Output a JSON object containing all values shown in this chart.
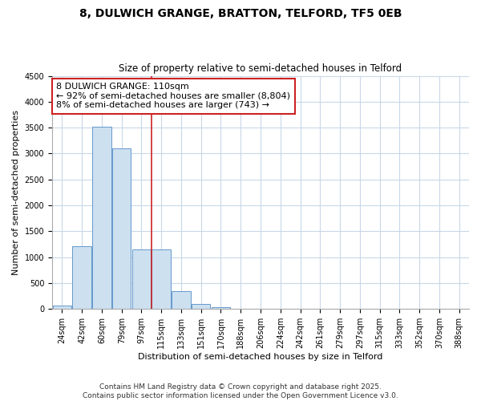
{
  "title": "8, DULWICH GRANGE, BRATTON, TELFORD, TF5 0EB",
  "subtitle": "Size of property relative to semi-detached houses in Telford",
  "xlabel": "Distribution of semi-detached houses by size in Telford",
  "ylabel": "Number of semi-detached properties",
  "categories": [
    "24sqm",
    "42sqm",
    "60sqm",
    "79sqm",
    "97sqm",
    "115sqm",
    "133sqm",
    "151sqm",
    "170sqm",
    "188sqm",
    "206sqm",
    "224sqm",
    "242sqm",
    "261sqm",
    "279sqm",
    "297sqm",
    "315sqm",
    "333sqm",
    "352sqm",
    "370sqm",
    "388sqm"
  ],
  "values": [
    75,
    1220,
    3520,
    3100,
    1150,
    1150,
    350,
    100,
    30,
    0,
    0,
    0,
    0,
    0,
    0,
    0,
    0,
    0,
    0,
    0,
    0
  ],
  "bar_color": "#cce0f0",
  "bar_edge_color": "#6699cc",
  "property_line_x": 4.5,
  "property_line_color": "#cc2222",
  "annotation_line1": "8 DULWICH GRANGE: 110sqm",
  "annotation_line2": "← 92% of semi-detached houses are smaller (8,804)",
  "annotation_line3": "8% of semi-detached houses are larger (743) →",
  "annotation_box_color": "#cc2222",
  "ylim": [
    0,
    4500
  ],
  "yticks": [
    0,
    500,
    1000,
    1500,
    2000,
    2500,
    3000,
    3500,
    4000,
    4500
  ],
  "footer_line1": "Contains HM Land Registry data © Crown copyright and database right 2025.",
  "footer_line2": "Contains public sector information licensed under the Open Government Licence v3.0.",
  "background_color": "#ffffff",
  "plot_bg_color": "#ffffff",
  "grid_color": "#c8d8e8",
  "title_fontsize": 10,
  "subtitle_fontsize": 8.5,
  "axis_label_fontsize": 8,
  "tick_fontsize": 7,
  "footer_fontsize": 6.5,
  "annotation_fontsize": 8
}
